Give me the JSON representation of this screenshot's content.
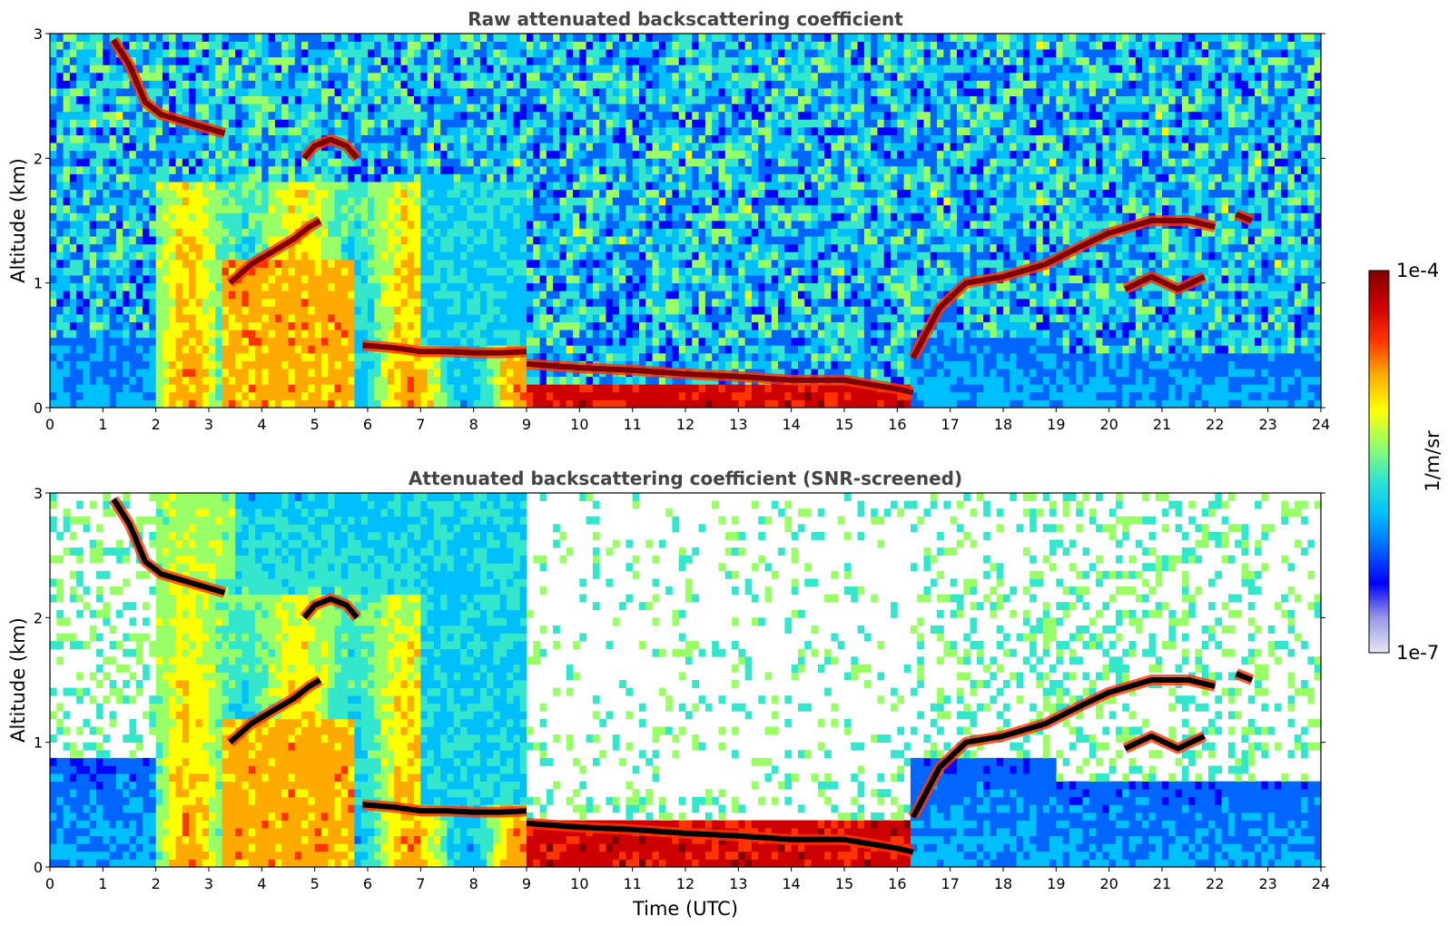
{
  "chart_data": [
    {
      "type": "heatmap",
      "title": "Raw attenuated backscattering coefficient",
      "ylabel": "Altitude (km)",
      "xlabel": "",
      "xlim": [
        0,
        24
      ],
      "ylim": [
        0,
        3
      ],
      "xticks": [
        "0",
        "1",
        "2",
        "3",
        "4",
        "5",
        "6",
        "7",
        "8",
        "9",
        "10",
        "11",
        "12",
        "13",
        "14",
        "15",
        "16",
        "17",
        "18",
        "19",
        "20",
        "21",
        "22",
        "23",
        "24"
      ],
      "yticks": [
        "0",
        "1",
        "2",
        "3"
      ],
      "screened": false,
      "cloud_layers": [
        {
          "x": [
            1.2,
            1.5,
            1.8,
            2.1,
            2.5,
            2.9,
            3.3
          ],
          "y": [
            2.95,
            2.75,
            2.45,
            2.35,
            2.3,
            2.25,
            2.2
          ]
        },
        {
          "x": [
            3.4,
            3.8,
            4.2,
            4.6,
            4.9,
            5.1
          ],
          "y": [
            1.0,
            1.15,
            1.25,
            1.35,
            1.45,
            1.5
          ]
        },
        {
          "x": [
            4.8,
            5.0,
            5.3,
            5.6,
            5.8
          ],
          "y": [
            2.0,
            2.1,
            2.15,
            2.1,
            2.0
          ]
        },
        {
          "x": [
            5.9,
            6.5,
            7.0,
            7.5,
            8.0,
            8.5,
            9.0
          ],
          "y": [
            0.5,
            0.48,
            0.45,
            0.45,
            0.44,
            0.44,
            0.45
          ]
        },
        {
          "x": [
            9.0,
            10,
            11,
            12,
            13,
            14,
            15,
            16,
            16.3
          ],
          "y": [
            0.35,
            0.32,
            0.3,
            0.27,
            0.25,
            0.22,
            0.22,
            0.15,
            0.12
          ]
        },
        {
          "x": [
            16.3,
            16.8,
            17.3,
            18,
            18.8,
            19.5,
            20,
            20.8,
            21.5,
            22.0
          ],
          "y": [
            0.4,
            0.8,
            1.0,
            1.05,
            1.15,
            1.3,
            1.4,
            1.5,
            1.5,
            1.45
          ]
        },
        {
          "x": [
            22.4,
            22.7
          ],
          "y": [
            1.55,
            1.5
          ]
        },
        {
          "x": [
            20.3,
            20.8,
            21.3,
            21.8
          ],
          "y": [
            0.95,
            1.05,
            0.95,
            1.05
          ]
        }
      ]
    },
    {
      "type": "heatmap",
      "title": "Attenuated backscattering coefficient (SNR-screened)",
      "ylabel": "Altitude (km)",
      "xlabel": "Time (UTC)",
      "xlim": [
        0,
        24
      ],
      "ylim": [
        0,
        3
      ],
      "xticks": [
        "0",
        "1",
        "2",
        "3",
        "4",
        "5",
        "6",
        "7",
        "8",
        "9",
        "10",
        "11",
        "12",
        "13",
        "14",
        "15",
        "16",
        "17",
        "18",
        "19",
        "20",
        "21",
        "22",
        "23",
        "24"
      ],
      "yticks": [
        "0",
        "1",
        "2",
        "3"
      ],
      "screened": true,
      "cloud_layers": [
        {
          "x": [
            1.2,
            1.5,
            1.8,
            2.1,
            2.5,
            2.9,
            3.3
          ],
          "y": [
            2.95,
            2.75,
            2.45,
            2.35,
            2.3,
            2.25,
            2.2
          ]
        },
        {
          "x": [
            3.4,
            3.8,
            4.2,
            4.6,
            4.9,
            5.1
          ],
          "y": [
            1.0,
            1.15,
            1.25,
            1.35,
            1.45,
            1.5
          ]
        },
        {
          "x": [
            4.8,
            5.0,
            5.3,
            5.6,
            5.8
          ],
          "y": [
            2.0,
            2.1,
            2.15,
            2.1,
            2.0
          ]
        },
        {
          "x": [
            5.9,
            6.5,
            7.0,
            7.5,
            8.0,
            8.5,
            9.0
          ],
          "y": [
            0.5,
            0.48,
            0.45,
            0.45,
            0.44,
            0.44,
            0.45
          ]
        },
        {
          "x": [
            9.0,
            10,
            11,
            12,
            13,
            14,
            15,
            16,
            16.3
          ],
          "y": [
            0.35,
            0.32,
            0.3,
            0.27,
            0.25,
            0.22,
            0.22,
            0.15,
            0.12
          ]
        },
        {
          "x": [
            16.3,
            16.8,
            17.3,
            18,
            18.8,
            19.5,
            20,
            20.8,
            21.5,
            22.0
          ],
          "y": [
            0.4,
            0.8,
            1.0,
            1.05,
            1.15,
            1.3,
            1.4,
            1.5,
            1.5,
            1.45
          ]
        },
        {
          "x": [
            22.4,
            22.7
          ],
          "y": [
            1.55,
            1.5
          ]
        },
        {
          "x": [
            20.3,
            20.8,
            21.3,
            21.8
          ],
          "y": [
            0.95,
            1.05,
            0.95,
            1.05
          ]
        }
      ]
    }
  ],
  "colorbar": {
    "label": "1/m/sr",
    "max_label": "1e-4",
    "min_label": "1e-7",
    "colors": [
      "#e6e6f5",
      "#9999e6",
      "#0000ff",
      "#0066ff",
      "#00bfff",
      "#33e6cc",
      "#99ff66",
      "#ffff00",
      "#ffaa00",
      "#ff3300",
      "#cc0000",
      "#800000"
    ]
  }
}
